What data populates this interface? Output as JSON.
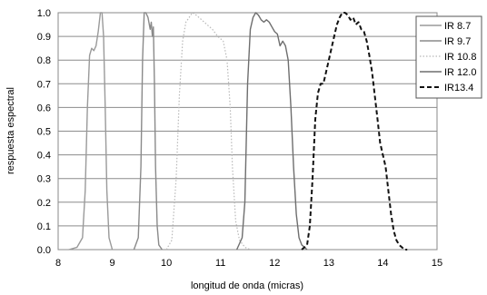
{
  "chart_data": {
    "type": "line",
    "xlabel": "longitud de onda (micras)",
    "ylabel": "respuesta espectral",
    "xlim": [
      8,
      15
    ],
    "ylim": [
      0,
      1
    ],
    "xticks": [
      "8",
      "9",
      "10",
      "11",
      "12",
      "13",
      "14",
      "15"
    ],
    "yticks": [
      "0.0",
      "0.1",
      "0.2",
      "0.3",
      "0.4",
      "0.5",
      "0.6",
      "0.7",
      "0.8",
      "0.9",
      "1.0"
    ],
    "grid": "horizontal",
    "legend_position": "right",
    "series": [
      {
        "name": "IR 8.7",
        "color": "#9a9a9a",
        "dash": "solid",
        "x": [
          8.2,
          8.35,
          8.45,
          8.5,
          8.54,
          8.58,
          8.62,
          8.66,
          8.7,
          8.74,
          8.78,
          8.81,
          8.84,
          8.87,
          8.9,
          8.94,
          9.0
        ],
        "y": [
          0.0,
          0.01,
          0.05,
          0.25,
          0.6,
          0.82,
          0.85,
          0.84,
          0.86,
          0.92,
          1.0,
          1.0,
          0.9,
          0.6,
          0.25,
          0.05,
          0.0
        ]
      },
      {
        "name": "IR 9.7",
        "color": "#8a8a8a",
        "dash": "solid",
        "x": [
          9.4,
          9.48,
          9.53,
          9.56,
          9.59,
          9.62,
          9.66,
          9.7,
          9.72,
          9.74,
          9.76,
          9.78,
          9.8,
          9.83,
          9.86,
          9.92
        ],
        "y": [
          0.0,
          0.05,
          0.35,
          0.8,
          1.0,
          1.0,
          0.98,
          0.93,
          0.96,
          0.9,
          0.94,
          0.7,
          0.35,
          0.1,
          0.02,
          0.0
        ]
      },
      {
        "name": "IR 10.8",
        "color": "#b8b8b8",
        "dash": "dotted",
        "x": [
          10.0,
          10.1,
          10.18,
          10.24,
          10.3,
          10.36,
          10.42,
          10.48,
          10.55,
          10.65,
          10.75,
          10.85,
          10.95,
          11.05,
          11.12,
          11.18,
          11.22,
          11.28,
          11.35,
          11.45,
          11.55
        ],
        "y": [
          0.0,
          0.04,
          0.3,
          0.65,
          0.88,
          0.96,
          0.98,
          1.0,
          0.99,
          0.97,
          0.95,
          0.93,
          0.9,
          0.88,
          0.8,
          0.6,
          0.35,
          0.12,
          0.04,
          0.01,
          0.0
        ]
      },
      {
        "name": "IR 12.0",
        "color": "#6e6e6e",
        "dash": "solid",
        "x": [
          11.3,
          11.4,
          11.45,
          11.5,
          11.55,
          11.6,
          11.65,
          11.7,
          11.75,
          11.8,
          11.85,
          11.9,
          11.95,
          12.0,
          12.05,
          12.1,
          12.15,
          12.2,
          12.25,
          12.3,
          12.35,
          12.4,
          12.45,
          12.5,
          12.55,
          12.6
        ],
        "y": [
          0.0,
          0.05,
          0.2,
          0.7,
          0.93,
          0.98,
          1.0,
          0.99,
          0.97,
          0.96,
          0.97,
          0.96,
          0.94,
          0.92,
          0.91,
          0.86,
          0.88,
          0.86,
          0.8,
          0.6,
          0.35,
          0.15,
          0.05,
          0.02,
          0.01,
          0.0
        ]
      },
      {
        "name": "IR13.4",
        "color": "#111111",
        "dash": "dashed",
        "x": [
          12.5,
          12.6,
          12.65,
          12.7,
          12.75,
          12.8,
          12.85,
          12.9,
          12.95,
          13.0,
          13.05,
          13.1,
          13.15,
          13.2,
          13.25,
          13.3,
          13.35,
          13.4,
          13.45,
          13.5,
          13.55,
          13.6,
          13.65,
          13.7,
          13.75,
          13.8,
          13.85,
          13.9,
          13.95,
          14.0,
          14.05,
          14.1,
          14.15,
          14.2,
          14.25,
          14.3,
          14.35,
          14.4,
          14.45
        ],
        "y": [
          0.0,
          0.02,
          0.1,
          0.3,
          0.55,
          0.66,
          0.7,
          0.7,
          0.75,
          0.8,
          0.85,
          0.9,
          0.95,
          0.98,
          1.0,
          1.0,
          0.99,
          0.97,
          0.98,
          0.95,
          0.96,
          0.93,
          0.92,
          0.88,
          0.82,
          0.75,
          0.65,
          0.55,
          0.45,
          0.4,
          0.35,
          0.25,
          0.15,
          0.08,
          0.04,
          0.02,
          0.01,
          0.0,
          0.0
        ]
      }
    ]
  }
}
